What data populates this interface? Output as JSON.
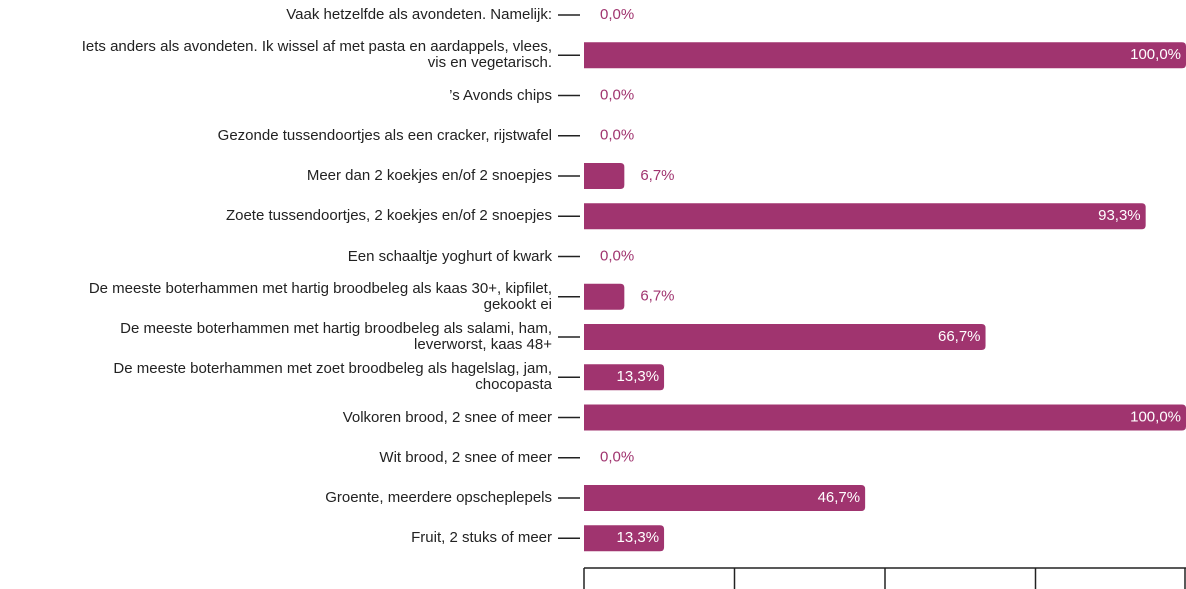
{
  "chart_data": {
    "type": "bar",
    "orientation": "horizontal",
    "color": "#a0346f",
    "categories": [
      "Vaak hetzelfde als avondeten. Namelijk:",
      "Iets anders als avondeten. Ik wissel af met pasta en aardappels, vlees,\nvis en vegetarisch.",
      "’s Avonds chips",
      "Gezonde tussendoortjes als een cracker, rijstwafel",
      "Meer dan 2 koekjes en/of 2 snoepjes",
      "Zoete tussendoortjes, 2 koekjes en/of 2 snoepjes",
      "Een schaaltje yoghurt of kwark",
      "De meeste boterhammen met hartig broodbeleg als kaas 30+, kipfilet,\ngekookt ei",
      "De meeste boterhammen met hartig broodbeleg als salami, ham,\nleverworst, kaas 48+",
      "De meeste boterhammen met zoet broodbeleg als hagelslag, jam,\nchocopasta",
      "Volkoren brood, 2 snee of meer",
      "Wit brood, 2 snee of meer",
      "Groente, meerdere opscheplepels",
      "Fruit, 2 stuks of meer"
    ],
    "values": [
      0,
      100,
      0,
      0,
      6.7,
      93.3,
      0,
      6.7,
      66.7,
      13.3,
      100,
      0,
      46.7,
      13.3
    ],
    "value_labels": [
      "0,0%",
      "100,0%",
      "0,0%",
      "0,0%",
      "6,7%",
      "93,3%",
      "0,0%",
      "6,7%",
      "66,7%",
      "13,3%",
      "100,0%",
      "0,0%",
      "46,7%",
      "13,3%"
    ],
    "xlim": [
      0,
      100
    ],
    "xticks": [
      0,
      25,
      50,
      75,
      100
    ]
  }
}
